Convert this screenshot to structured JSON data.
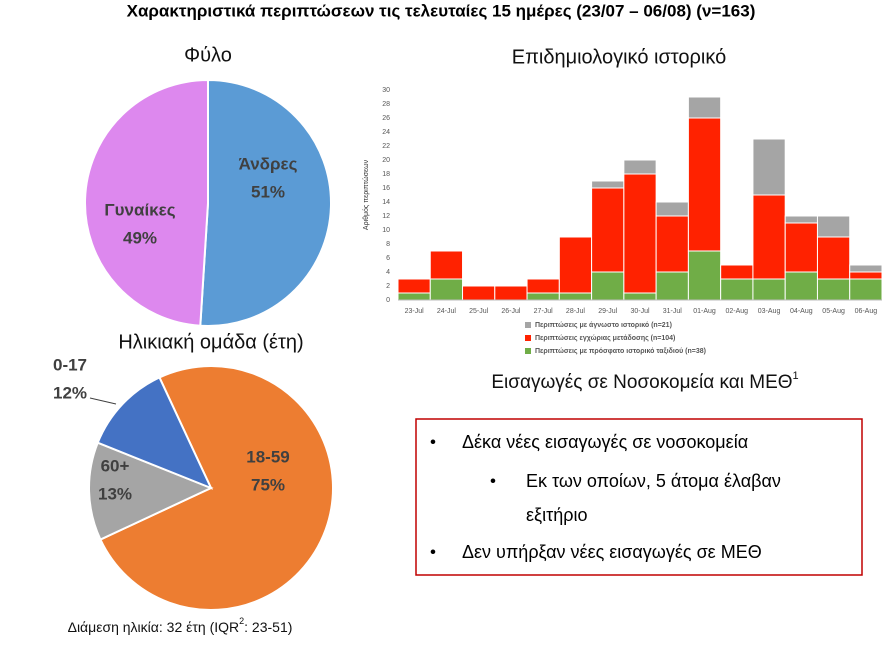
{
  "title": "Χαρακτηριστικά περιπτώσεων τις τελευταίες 15 ημέρες (23/07 – 06/08) (ν=163)",
  "chart_data": [
    {
      "type": "pie",
      "title": "Φύλο",
      "categories": [
        "Άνδρες",
        "Γυναίκες"
      ],
      "values": [
        51,
        49
      ],
      "value_labels": [
        "51%",
        "49%"
      ],
      "colors": [
        "#5b9bd5",
        "#dd88ee"
      ]
    },
    {
      "type": "pie",
      "title": "Ηλικιακή ομάδα (έτη)",
      "categories": [
        "18-59",
        "60+",
        "0-17"
      ],
      "values": [
        75,
        13,
        12
      ],
      "value_labels": [
        "75%",
        "13%",
        "12%"
      ],
      "colors": [
        "#ed7d31",
        "#a5a5a5",
        "#4472c4"
      ]
    },
    {
      "type": "stacked-bar",
      "title": "Επιδημιολογικό ιστορικό",
      "y_label": "Αριθμός περιπτώσεων",
      "categories": [
        "23-Jul",
        "24-Jul",
        "25-Jul",
        "26-Jul",
        "27-Jul",
        "28-Jul",
        "29-Jul",
        "30-Jul",
        "31-Jul",
        "01-Aug",
        "02-Aug",
        "03-Aug",
        "04-Aug",
        "05-Aug",
        "06-Aug"
      ],
      "series": [
        {
          "name": "Περιπτώσεις με πρόσφατο ιστορικό ταξιδιού (n=38)",
          "color": "#70ad47",
          "values": [
            1,
            3,
            0,
            0,
            1,
            1,
            4,
            1,
            4,
            7,
            3,
            3,
            4,
            3,
            3
          ]
        },
        {
          "name": "Περιπτώσεις εγχώριας μετάδοσης (n=104)",
          "color": "#ff2200",
          "values": [
            2,
            4,
            2,
            2,
            2,
            8,
            12,
            17,
            8,
            19,
            2,
            12,
            7,
            6,
            1
          ]
        },
        {
          "name": "Περιπτώσεις με άγνωστο ιστορικό (n=21)",
          "color": "#a5a5a5",
          "values": [
            0,
            0,
            0,
            0,
            0,
            0,
            1,
            2,
            2,
            3,
            0,
            8,
            1,
            3,
            1
          ]
        }
      ],
      "ylim": [
        0,
        30
      ],
      "yticks": [
        0,
        2,
        4,
        6,
        8,
        10,
        12,
        14,
        16,
        18,
        20,
        22,
        24,
        26,
        28,
        30
      ]
    }
  ],
  "admissions": {
    "title": "Εισαγωγές σε Νοσοκομεία και ΜΕΘ",
    "title_sup": "1",
    "bullets": [
      "Δέκα νέες εισαγωγές σε νοσοκομεία",
      "Εκ των οποίων, 5 άτομα έλαβαν",
      "εξιτήριο",
      "Δεν υπήρξαν νέες εισαγωγές σε ΜΕΘ"
    ]
  },
  "footnote": {
    "text": "Διάμεση ηλικία: 32 έτη (IQR",
    "sup": "2",
    "text_end": ": 23-51)"
  }
}
